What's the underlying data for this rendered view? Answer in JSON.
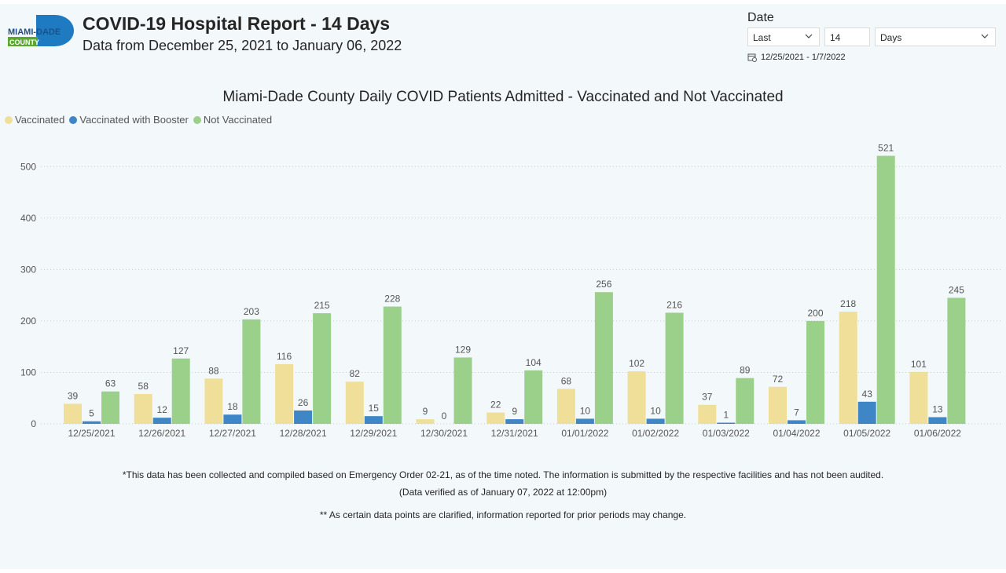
{
  "header": {
    "title": "COVID-19 Hospital Report - 14 Days",
    "subtitle": "Data from December 25, 2021 to January 06, 2022",
    "logo": {
      "line1": "MIAMI-DADE",
      "line2": "COUNTY",
      "brand_color": "#1e7bc2",
      "accent_color": "#5aa832"
    }
  },
  "filter": {
    "label": "Date",
    "mode_value": "Last",
    "count_value": "14",
    "unit_value": "Days",
    "range_text": "12/25/2021 - 1/7/2022"
  },
  "chart_data": {
    "type": "bar",
    "title": "Miami-Dade County Daily COVID Patients Admitted - Vaccinated and Not Vaccinated",
    "xlabel": "",
    "ylabel": "",
    "ylim": [
      0,
      521
    ],
    "yticks": [
      0,
      100,
      200,
      300,
      400,
      500
    ],
    "grid": true,
    "legend_position": "top-left",
    "categories": [
      "12/25/2021",
      "12/26/2021",
      "12/27/2021",
      "12/28/2021",
      "12/29/2021",
      "12/30/2021",
      "12/31/2021",
      "01/01/2022",
      "01/02/2022",
      "01/03/2022",
      "01/04/2022",
      "01/05/2022",
      "01/06/2022"
    ],
    "series": [
      {
        "name": "Vaccinated",
        "color": "#f0df98",
        "values": [
          39,
          58,
          88,
          116,
          82,
          9,
          22,
          68,
          102,
          37,
          72,
          218,
          101
        ]
      },
      {
        "name": "Vaccinated with Booster",
        "color": "#3f86c6",
        "values": [
          5,
          12,
          18,
          26,
          15,
          0,
          9,
          10,
          10,
          1,
          7,
          43,
          13
        ]
      },
      {
        "name": "Not Vaccinated",
        "color": "#9bd08b",
        "values": [
          63,
          127,
          203,
          215,
          228,
          129,
          104,
          256,
          216,
          89,
          200,
          521,
          245
        ]
      }
    ]
  },
  "footnotes": {
    "line1": "*This data has been collected and compiled based on Emergency Order 02-21, as of the time noted. The information is submitted by the respective facilities and has not been audited.",
    "line2": "(Data verified as of January 07, 2022 at 12:00pm)",
    "line3": "** As certain data points are clarified, information reported for prior periods may change."
  }
}
